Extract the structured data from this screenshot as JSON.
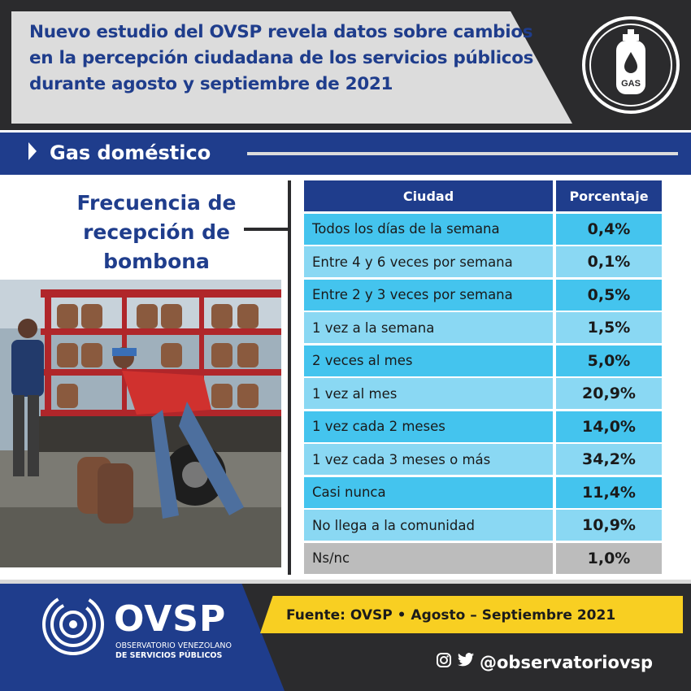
{
  "header": {
    "title": "Nuevo estudio del OVSP revela datos sobre cambios en la percepción ciudadana de los servicios públicos durante agosto y septiembre de 2021",
    "badge_label": "GAS"
  },
  "section": {
    "title": "Gas doméstico"
  },
  "left": {
    "title": "Frecuencia de recepción de bombona"
  },
  "table": {
    "headers": [
      "Ciudad",
      "Porcentaje"
    ],
    "rows": [
      {
        "label": "Todos los días de la semana",
        "value": "0,4%"
      },
      {
        "label": "Entre 4 y 6 veces por semana",
        "value": "0,1%"
      },
      {
        "label": "Entre 2 y 3 veces por semana",
        "value": "0,5%"
      },
      {
        "label": "1 vez a la semana",
        "value": "1,5%"
      },
      {
        "label": "2 veces al mes",
        "value": "5,0%"
      },
      {
        "label": "1 vez al mes",
        "value": "20,9%"
      },
      {
        "label": "1 vez cada 2 meses",
        "value": "14,0%"
      },
      {
        "label": "1 vez cada 3 meses o más",
        "value": "34,2%"
      },
      {
        "label": "Casi nunca",
        "value": "11,4%"
      },
      {
        "label": "No llega a la comunidad",
        "value": "10,9%"
      },
      {
        "label": "Ns/nc",
        "value": "1,0%"
      }
    ]
  },
  "footer": {
    "source": "Fuente: OVSP  •  Agosto – Septiembre 2021",
    "social_handle": "@observatoriovsp",
    "brand": "OVSP",
    "brand_sub1": "OBSERVATORIO VENEZOLANO",
    "brand_sub2": "DE SERVICIOS PÚBLICOS"
  },
  "colors": {
    "brand_blue": "#1f3d8c",
    "row_dark": "#44c4ee",
    "row_light": "#8ad8f3",
    "row_grey": "#bcbcbc",
    "source_yellow": "#f8cf22",
    "dark": "#2b2b2d"
  },
  "icons": {
    "header_badge": "gas-cylinder-icon",
    "band_arrow": "play-arrow-icon",
    "social": [
      "instagram-icon",
      "twitter-icon"
    ]
  }
}
